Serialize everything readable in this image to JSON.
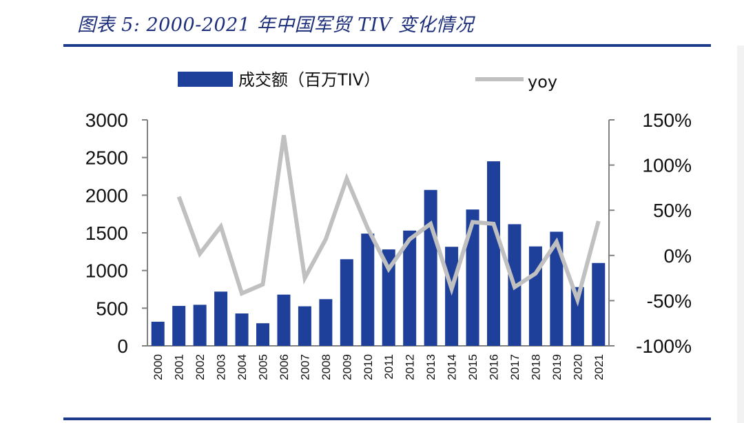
{
  "title": "图表 5:  2000-2021 年中国军贸 TIV 变化情况",
  "chart_data": {
    "type": "bar",
    "categories": [
      "2000",
      "2001",
      "2002",
      "2003",
      "2004",
      "2005",
      "2006",
      "2007",
      "2008",
      "2009",
      "2010",
      "2011",
      "2012",
      "2013",
      "2014",
      "2015",
      "2016",
      "2017",
      "2018",
      "2019",
      "2020",
      "2021"
    ],
    "series": [
      {
        "name": "成交额（百万TIV）",
        "type": "bar",
        "axis": "left",
        "color": "#1e3f9a",
        "values": [
          320,
          530,
          545,
          720,
          430,
          300,
          680,
          525,
          620,
          1150,
          1490,
          1280,
          1530,
          2070,
          1315,
          1810,
          2450,
          1615,
          1320,
          1515,
          780,
          1100
        ]
      },
      {
        "name": "yoy",
        "type": "line",
        "axis": "right",
        "color": "#c0c0c0",
        "values": [
          null,
          65,
          2,
          32,
          -42,
          -32,
          133,
          -25,
          18,
          85,
          30,
          -15,
          18,
          35,
          -37,
          37,
          35,
          -35,
          -20,
          15,
          -49,
          38
        ]
      }
    ],
    "y_left": {
      "ylim": [
        0,
        3000
      ],
      "ticks": [
        "3000",
        "2500",
        "2000",
        "1500",
        "1000",
        "500",
        "0"
      ],
      "tick_values": [
        3000,
        2500,
        2000,
        1500,
        1000,
        500,
        0
      ]
    },
    "y_right": {
      "ylim": [
        -100,
        150
      ],
      "ticks": [
        "150%",
        "100%",
        "50%",
        "0%",
        "-50%",
        "-100%"
      ],
      "tick_values": [
        150,
        100,
        50,
        0,
        -50,
        -100
      ]
    },
    "legend": {
      "placement": "top",
      "entries": [
        "成交额（百万TIV）",
        "yoy"
      ]
    },
    "grid": false
  }
}
